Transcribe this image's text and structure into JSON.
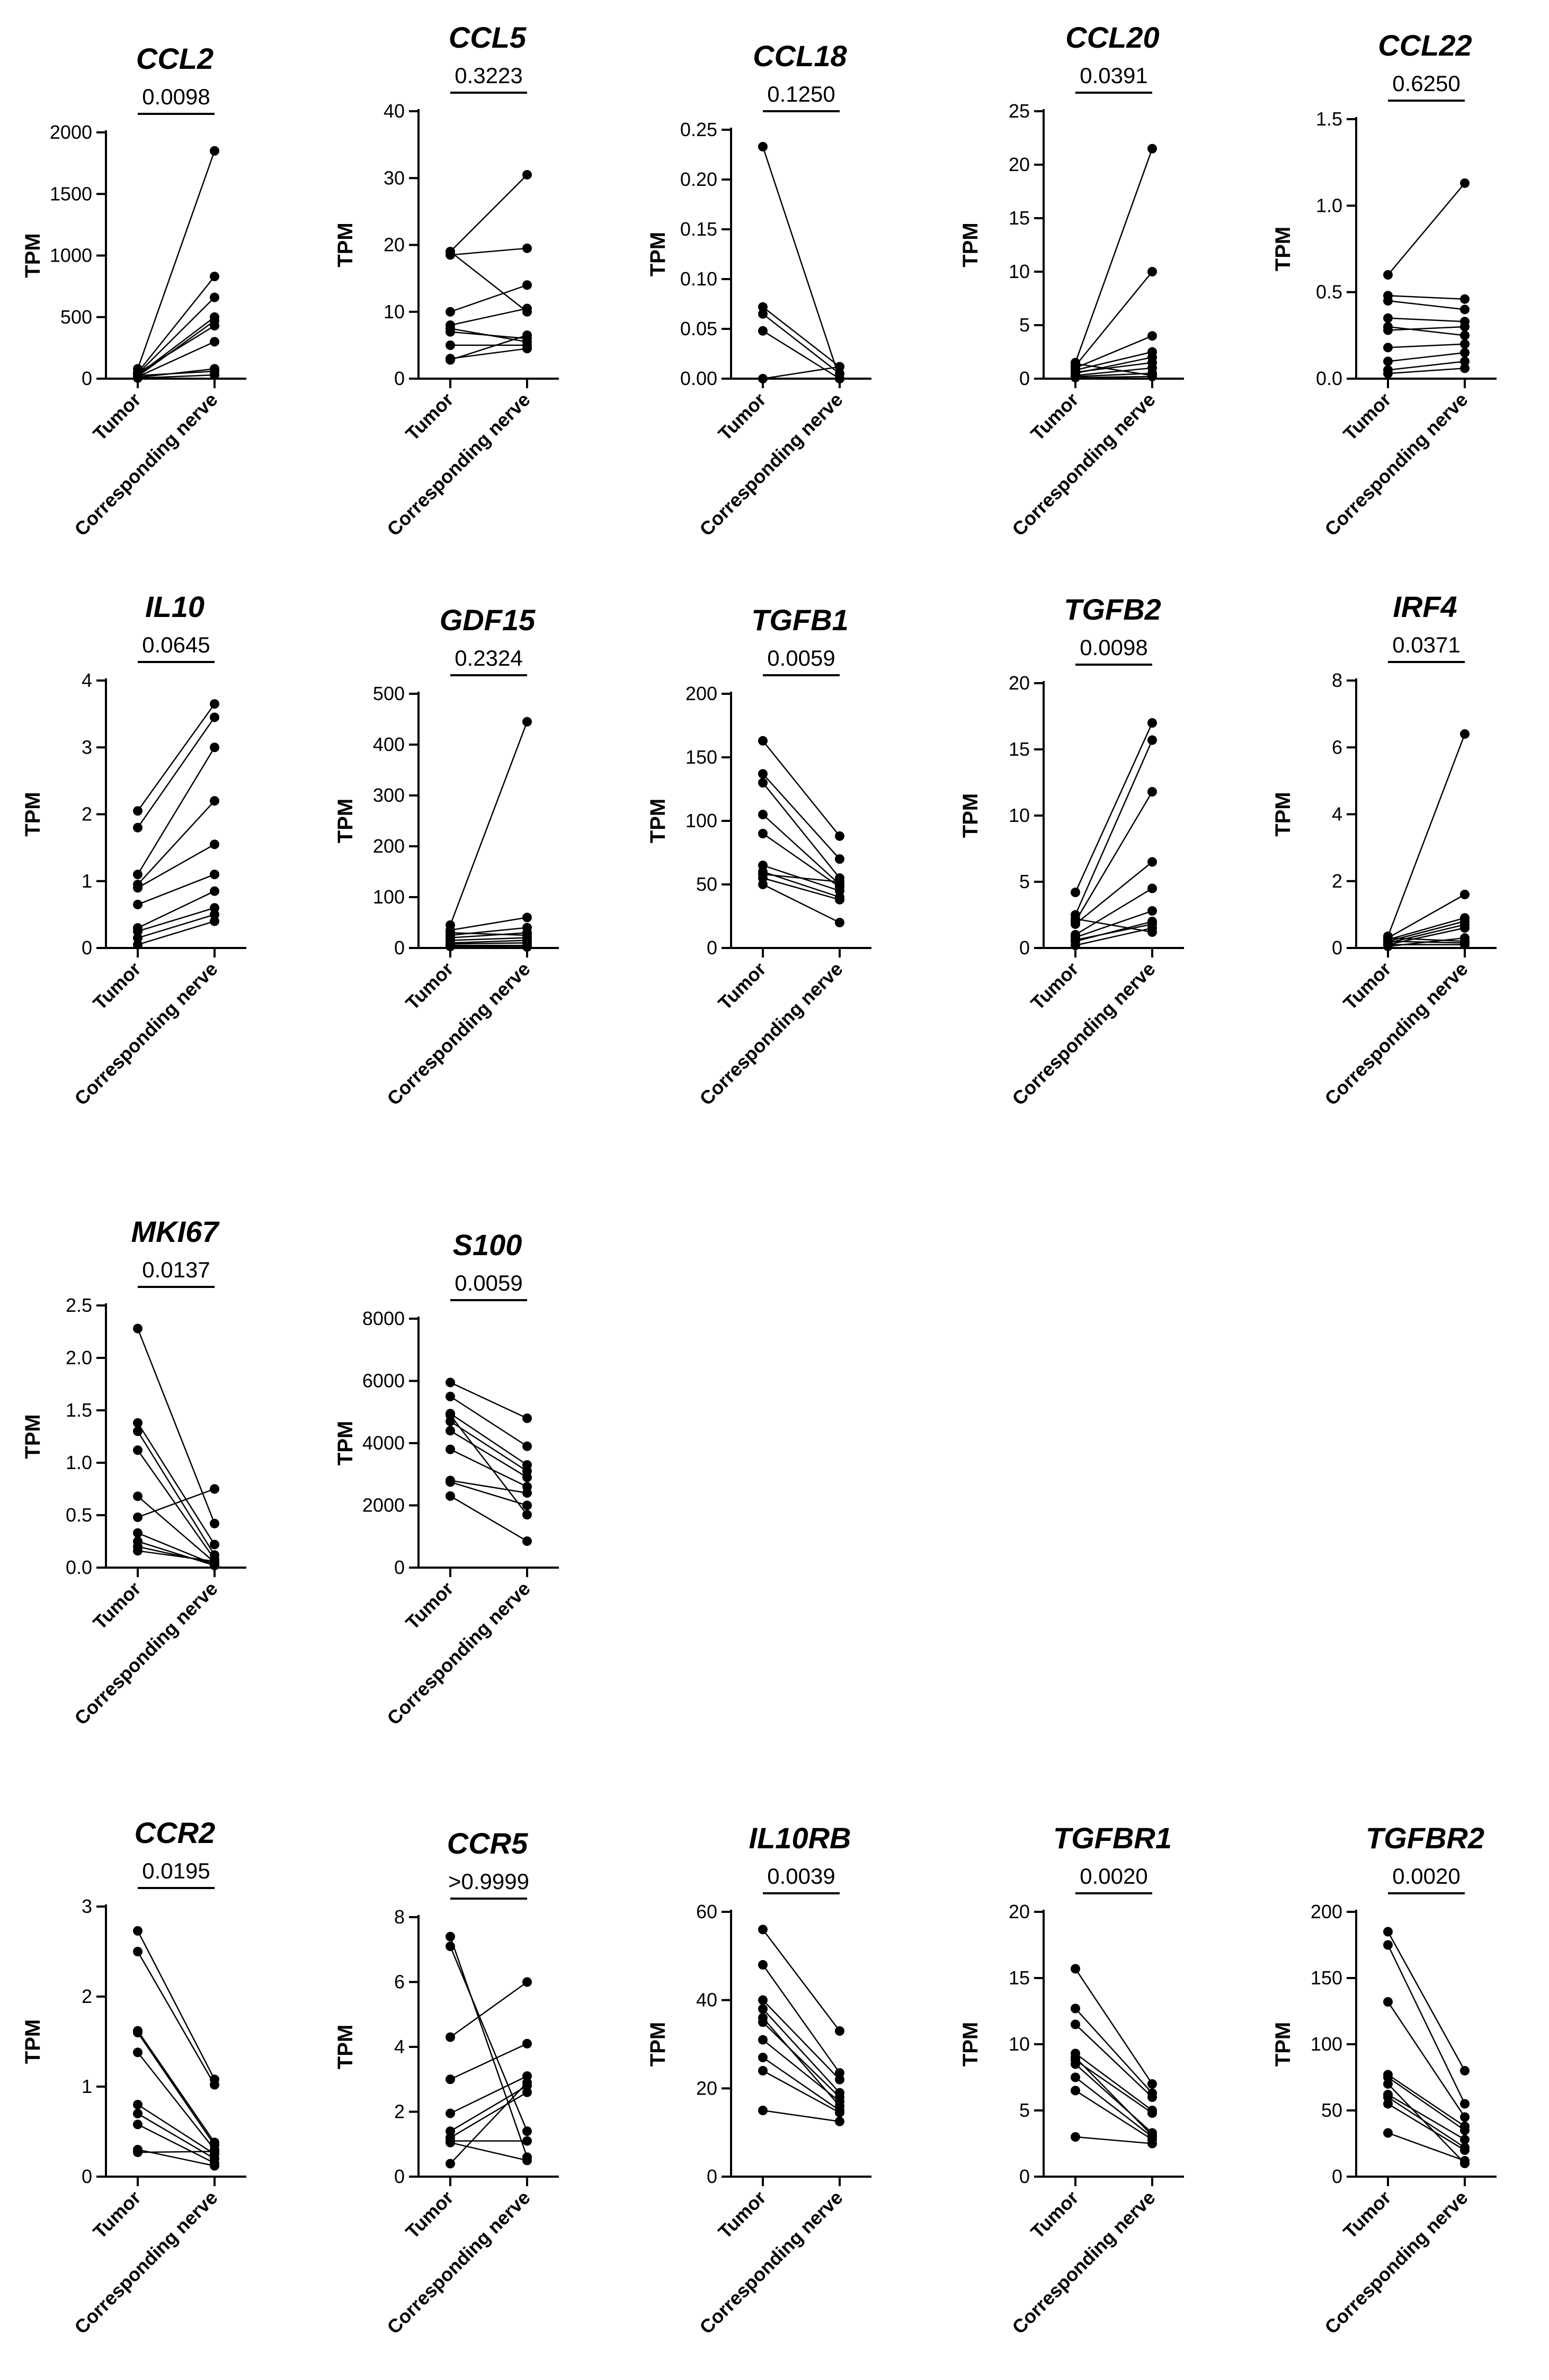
{
  "chart_data": [
    {
      "type": "scatter",
      "subtype": "paired",
      "title": "CCL2",
      "ylabel": "TPM",
      "categories": [
        "Tumor",
        "Corresponding nerve"
      ],
      "p_value": "0.0098",
      "ylim": [
        0,
        2000
      ],
      "yticks": [
        "0",
        "500",
        "1000",
        "1500",
        "2000"
      ],
      "tumor": [
        80,
        50,
        40,
        30,
        20,
        15,
        10,
        5,
        45,
        25
      ],
      "nerve": [
        1850,
        830,
        660,
        500,
        470,
        300,
        80,
        30,
        430,
        60
      ]
    },
    {
      "type": "scatter",
      "subtype": "paired",
      "title": "CCL5",
      "ylabel": "TPM",
      "categories": [
        "Tumor",
        "Corresponding nerve"
      ],
      "p_value": "0.3223",
      "ylim": [
        0,
        40
      ],
      "yticks": [
        "0",
        "10",
        "20",
        "30",
        "40"
      ],
      "tumor": [
        19,
        18.5,
        10,
        8,
        7,
        5,
        3,
        2.8,
        19,
        7.5
      ],
      "nerve": [
        30.5,
        19.5,
        14,
        10.5,
        6,
        5,
        4.5,
        6.5,
        10,
        5.5
      ]
    },
    {
      "type": "scatter",
      "subtype": "paired",
      "title": "CCL18",
      "ylabel": "TPM",
      "categories": [
        "Tumor",
        "Corresponding nerve"
      ],
      "p_value": "0.1250",
      "ylim": [
        0,
        0.25
      ],
      "yticks": [
        "0.00",
        "0.05",
        "0.10",
        "0.15",
        "0.20",
        "0.25"
      ],
      "tumor": [
        0.233,
        0.072,
        0.065,
        0.048,
        0.0
      ],
      "nerve": [
        0.0,
        0.012,
        0.005,
        0.0,
        0.012
      ]
    },
    {
      "type": "scatter",
      "subtype": "paired",
      "title": "CCL20",
      "ylabel": "TPM",
      "categories": [
        "Tumor",
        "Corresponding nerve"
      ],
      "p_value": "0.0391",
      "ylim": [
        0,
        25
      ],
      "yticks": [
        "0",
        "5",
        "10",
        "15",
        "20",
        "25"
      ],
      "tumor": [
        1.5,
        1.2,
        1.0,
        0.8,
        0.5,
        0.3,
        0.2,
        1.4,
        0.6,
        0.1
      ],
      "nerve": [
        21.5,
        10,
        4,
        2.5,
        2,
        1,
        0.5,
        0.3,
        1.5,
        0.2
      ]
    },
    {
      "type": "scatter",
      "subtype": "paired",
      "title": "CCL22",
      "ylabel": "TPM",
      "categories": [
        "Tumor",
        "Corresponding nerve"
      ],
      "p_value": "0.6250",
      "ylim": [
        0,
        1.5
      ],
      "yticks": [
        "0.0",
        "0.5",
        "1.0",
        "1.5"
      ],
      "tumor": [
        0.6,
        0.48,
        0.45,
        0.35,
        0.3,
        0.18,
        0.1,
        0.05,
        0.03,
        0.28
      ],
      "nerve": [
        1.13,
        0.46,
        0.4,
        0.33,
        0.25,
        0.2,
        0.15,
        0.1,
        0.06,
        0.3
      ]
    },
    {
      "type": "scatter",
      "subtype": "paired",
      "title": "IL10",
      "ylabel": "TPM",
      "categories": [
        "Tumor",
        "Corresponding nerve"
      ],
      "p_value": "0.0645",
      "ylim": [
        0,
        4
      ],
      "yticks": [
        "0",
        "1",
        "2",
        "3",
        "4"
      ],
      "tumor": [
        2.05,
        1.8,
        1.1,
        0.95,
        0.9,
        0.65,
        0.3,
        0.25,
        0.15,
        0.05
      ],
      "nerve": [
        3.65,
        3.45,
        3.0,
        2.2,
        1.55,
        1.1,
        0.85,
        0.6,
        0.5,
        0.4
      ]
    },
    {
      "type": "scatter",
      "subtype": "paired",
      "title": "GDF15",
      "ylabel": "TPM",
      "categories": [
        "Tumor",
        "Corresponding nerve"
      ],
      "p_value": "0.2324",
      "ylim": [
        0,
        500
      ],
      "yticks": [
        "0",
        "100",
        "200",
        "300",
        "400",
        "500"
      ],
      "tumor": [
        45,
        35,
        25,
        20,
        15,
        10,
        8,
        5,
        3,
        30
      ],
      "nerve": [
        445,
        60,
        40,
        30,
        20,
        15,
        10,
        5,
        2,
        25
      ]
    },
    {
      "type": "scatter",
      "subtype": "paired",
      "title": "TGFB1",
      "ylabel": "TPM",
      "categories": [
        "Tumor",
        "Corresponding nerve"
      ],
      "p_value": "0.0059",
      "ylim": [
        0,
        200
      ],
      "yticks": [
        "0",
        "50",
        "100",
        "150",
        "200"
      ],
      "tumor": [
        163,
        137,
        130,
        105,
        90,
        65,
        60,
        55,
        50,
        58
      ],
      "nerve": [
        88,
        70,
        55,
        50,
        48,
        45,
        40,
        38,
        20,
        52
      ]
    },
    {
      "type": "scatter",
      "subtype": "paired",
      "title": "TGFB2",
      "ylabel": "TPM",
      "categories": [
        "Tumor",
        "Corresponding nerve"
      ],
      "p_value": "0.0098",
      "ylim": [
        0,
        20
      ],
      "yticks": [
        "0",
        "5",
        "10",
        "15",
        "20"
      ],
      "tumor": [
        4.2,
        2.5,
        2.0,
        1.8,
        1.0,
        0.8,
        0.5,
        0.2,
        2.2,
        0.6
      ],
      "nerve": [
        17,
        15.7,
        11.8,
        6.5,
        4.5,
        2.8,
        2.0,
        1.5,
        1.2,
        1.8
      ]
    },
    {
      "type": "scatter",
      "subtype": "paired",
      "title": "IRF4",
      "ylabel": "TPM",
      "categories": [
        "Tumor",
        "Corresponding nerve"
      ],
      "p_value": "0.0371",
      "ylim": [
        0,
        8
      ],
      "yticks": [
        "0",
        "2",
        "4",
        "6",
        "8"
      ],
      "tumor": [
        0.35,
        0.3,
        0.25,
        0.2,
        0.15,
        0.1,
        0.05,
        0.3,
        0.2,
        0.1
      ],
      "nerve": [
        6.4,
        1.6,
        0.9,
        0.8,
        0.7,
        0.6,
        0.3,
        0.2,
        0.15,
        0.1
      ]
    },
    {
      "type": "scatter",
      "subtype": "paired",
      "title": "MKI67",
      "ylabel": "TPM",
      "categories": [
        "Tumor",
        "Corresponding nerve"
      ],
      "p_value": "0.0137",
      "ylim": [
        0,
        2.5
      ],
      "yticks": [
        "0.0",
        "0.5",
        "1.0",
        "1.5",
        "2.0",
        "2.5"
      ],
      "tumor": [
        2.28,
        1.38,
        1.3,
        1.12,
        0.68,
        0.48,
        0.33,
        0.25,
        0.2,
        0.16
      ],
      "nerve": [
        0.42,
        0.22,
        0.12,
        0.08,
        0.05,
        0.75,
        0.03,
        0.02,
        0.04,
        0.06
      ]
    },
    {
      "type": "scatter",
      "subtype": "paired",
      "title": "S100",
      "ylabel": "TPM",
      "categories": [
        "Tumor",
        "Corresponding nerve"
      ],
      "p_value": "0.0059",
      "ylim": [
        0,
        8000
      ],
      "yticks": [
        "0",
        "2000",
        "4000",
        "6000",
        "8000"
      ],
      "tumor": [
        5950,
        5500,
        4950,
        4700,
        4400,
        3800,
        2800,
        2750,
        2300,
        4900
      ],
      "nerve": [
        4800,
        3900,
        3300,
        3100,
        2900,
        2600,
        2400,
        2000,
        850,
        1700
      ]
    },
    {
      "type": "scatter",
      "subtype": "paired",
      "title": "CCR2",
      "ylabel": "TPM",
      "categories": [
        "Tumor",
        "Corresponding nerve"
      ],
      "p_value": "0.0195",
      "ylim": [
        0,
        3
      ],
      "yticks": [
        "0",
        "1",
        "2",
        "3"
      ],
      "tumor": [
        2.73,
        2.5,
        1.62,
        1.6,
        1.38,
        0.8,
        0.7,
        0.58,
        0.3,
        0.27
      ],
      "nerve": [
        1.08,
        1.02,
        0.38,
        0.35,
        0.3,
        0.25,
        0.2,
        0.15,
        0.12,
        0.28
      ]
    },
    {
      "type": "scatter",
      "subtype": "paired",
      "title": "CCR5",
      "ylabel": "TPM",
      "categories": [
        "Tumor",
        "Corresponding nerve"
      ],
      "p_value": ">0.9999",
      "ylim": [
        0,
        8
      ],
      "yticks": [
        "0",
        "2",
        "4",
        "6",
        "8"
      ],
      "tumor": [
        7.4,
        7.1,
        4.3,
        3.0,
        1.95,
        1.4,
        1.2,
        1.1,
        1.05,
        0.4
      ],
      "nerve": [
        0.6,
        1.4,
        6.0,
        4.1,
        3.1,
        2.8,
        2.6,
        1.1,
        0.5,
        2.9
      ]
    },
    {
      "type": "scatter",
      "subtype": "paired",
      "title": "IL10RB",
      "ylabel": "TPM",
      "categories": [
        "Tumor",
        "Corresponding nerve"
      ],
      "p_value": "0.0039",
      "ylim": [
        0,
        60
      ],
      "yticks": [
        "0",
        "20",
        "40",
        "60"
      ],
      "tumor": [
        56,
        48,
        40,
        38,
        35,
        31,
        27,
        24,
        15,
        36
      ],
      "nerve": [
        33,
        23.5,
        22,
        19,
        18,
        17,
        15,
        14.5,
        12.5,
        16
      ]
    },
    {
      "type": "scatter",
      "subtype": "paired",
      "title": "TGFBR1",
      "ylabel": "TPM",
      "categories": [
        "Tumor",
        "Corresponding nerve"
      ],
      "p_value": "0.0020",
      "ylim": [
        0,
        20
      ],
      "yticks": [
        "0",
        "5",
        "10",
        "15",
        "20"
      ],
      "tumor": [
        15.7,
        12.7,
        11.5,
        9.3,
        8.8,
        8.5,
        7.5,
        6.5,
        3.0,
        9.0
      ],
      "nerve": [
        7.0,
        6.3,
        6.0,
        5.0,
        4.8,
        3.3,
        3.0,
        2.8,
        2.5,
        3.1
      ]
    },
    {
      "type": "scatter",
      "subtype": "paired",
      "title": "TGFBR2",
      "ylabel": "TPM",
      "categories": [
        "Tumor",
        "Corresponding nerve"
      ],
      "p_value": "0.0020",
      "ylim": [
        0,
        200
      ],
      "yticks": [
        "0",
        "50",
        "100",
        "150",
        "200"
      ],
      "tumor": [
        185,
        175,
        132,
        77,
        75,
        62,
        60,
        55,
        33,
        70
      ],
      "nerve": [
        80,
        55,
        45,
        38,
        35,
        28,
        22,
        20,
        12,
        10
      ]
    }
  ]
}
